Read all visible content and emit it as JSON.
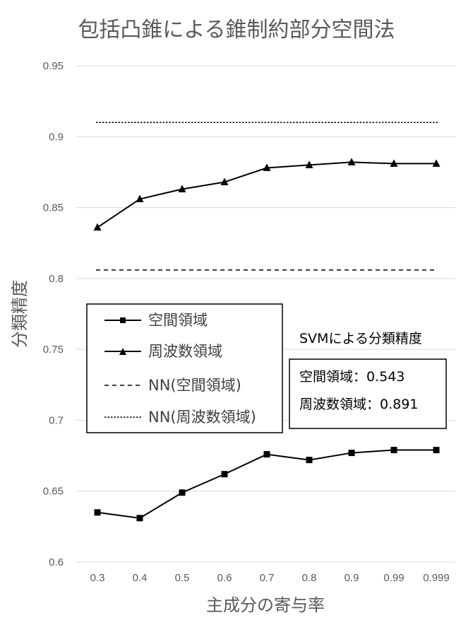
{
  "chart_data": {
    "type": "line",
    "title": "包括凸錐による錐制約部分空間法",
    "xlabel": "主成分の寄与率",
    "ylabel": "分類精度",
    "categories": [
      "0.3",
      "0.4",
      "0.5",
      "0.6",
      "0.7",
      "0.8",
      "0.9",
      "0.99",
      "0.999"
    ],
    "ylim": [
      0.6,
      0.95
    ],
    "yticks": [
      "0.6",
      "0.65",
      "0.7",
      "0.75",
      "0.8",
      "0.85",
      "0.9",
      "0.95"
    ],
    "grid": true,
    "series": [
      {
        "name": "空間領域",
        "marker": "square",
        "style": "solid",
        "values": [
          0.635,
          0.631,
          0.649,
          0.662,
          0.676,
          0.672,
          0.677,
          0.679,
          0.679
        ]
      },
      {
        "name": "周波数領域",
        "marker": "triangle",
        "style": "solid",
        "values": [
          0.836,
          0.856,
          0.863,
          0.868,
          0.878,
          0.88,
          0.882,
          0.881,
          0.881
        ]
      },
      {
        "name": "NN(空間領域)",
        "marker": "none",
        "style": "dashed",
        "values": [
          0.806,
          0.806,
          0.806,
          0.806,
          0.806,
          0.806,
          0.806,
          0.806,
          0.806
        ]
      },
      {
        "name": "NN(周波数領域)",
        "marker": "none",
        "style": "dotted",
        "values": [
          0.91,
          0.91,
          0.91,
          0.91,
          0.91,
          0.91,
          0.91,
          0.91,
          0.91
        ]
      }
    ],
    "legend_position": "center-left",
    "annotation": {
      "title": "SVMによる分類精度",
      "lines": [
        "空間領域：0.543",
        "周波数領域：0.891"
      ]
    }
  }
}
